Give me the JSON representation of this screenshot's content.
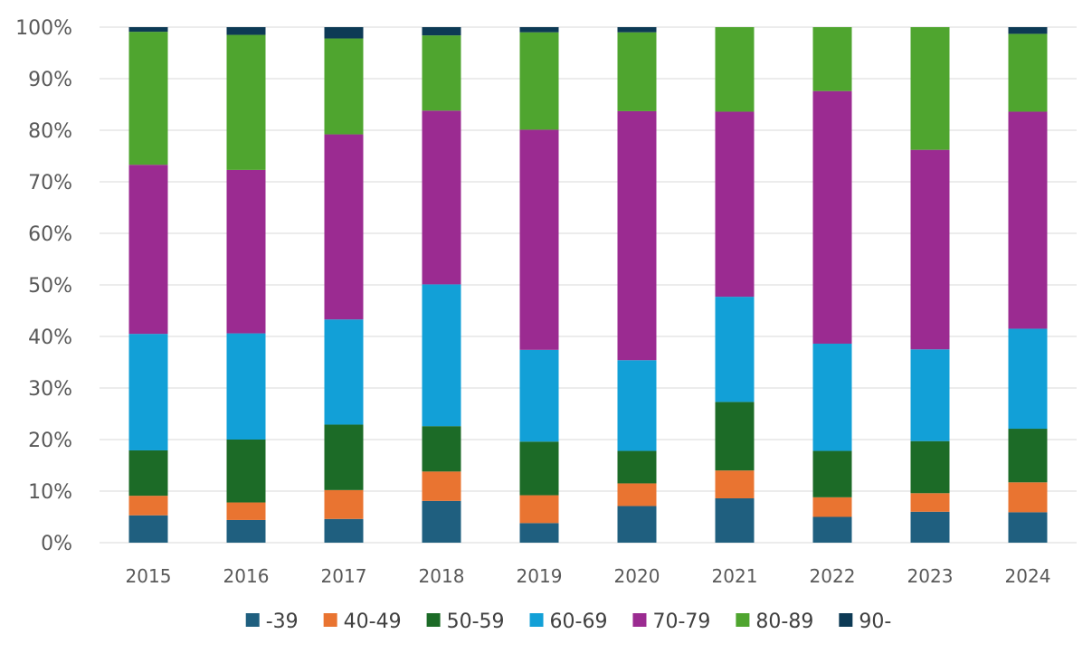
{
  "chart_data": {
    "type": "bar",
    "stacked": true,
    "percent": true,
    "categories": [
      "2015",
      "2016",
      "2017",
      "2018",
      "2019",
      "2020",
      "2021",
      "2022",
      "2023",
      "2024"
    ],
    "series": [
      {
        "name": "-39",
        "color": "#1f5f7f",
        "values": [
          5.3,
          4.4,
          4.6,
          8.1,
          3.8,
          7.1,
          8.6,
          5.0,
          6.0,
          5.9
        ]
      },
      {
        "name": "40-49",
        "color": "#e97431",
        "values": [
          3.8,
          3.4,
          5.6,
          5.7,
          5.4,
          4.4,
          5.4,
          3.8,
          3.6,
          5.8
        ]
      },
      {
        "name": "50-59",
        "color": "#1c6b27",
        "values": [
          8.8,
          12.2,
          12.7,
          8.8,
          10.4,
          6.3,
          13.3,
          9.0,
          10.1,
          10.4
        ]
      },
      {
        "name": "60-69",
        "color": "#12a0d7",
        "values": [
          22.6,
          20.6,
          20.4,
          27.5,
          17.8,
          17.6,
          20.4,
          20.8,
          17.8,
          19.4
        ]
      },
      {
        "name": "70-79",
        "color": "#9b2b91",
        "values": [
          32.8,
          31.7,
          35.9,
          33.7,
          42.7,
          48.3,
          35.9,
          49.0,
          38.7,
          42.1
        ]
      },
      {
        "name": "80-89",
        "color": "#4fa52f",
        "values": [
          25.8,
          26.2,
          18.6,
          14.6,
          18.9,
          15.3,
          16.4,
          12.4,
          23.8,
          15.1
        ]
      },
      {
        "name": "90-",
        "color": "#0d3a55",
        "values": [
          0.9,
          1.5,
          2.2,
          1.6,
          1.0,
          1.0,
          0.0,
          0.0,
          0.0,
          1.3
        ]
      }
    ],
    "yticks": [
      "0%",
      "10%",
      "20%",
      "30%",
      "40%",
      "50%",
      "60%",
      "70%",
      "80%",
      "90%",
      "100%"
    ],
    "ylim": [
      0,
      100
    ],
    "grid": true,
    "legend": "bottom",
    "title": "",
    "xlabel": "",
    "ylabel": ""
  }
}
